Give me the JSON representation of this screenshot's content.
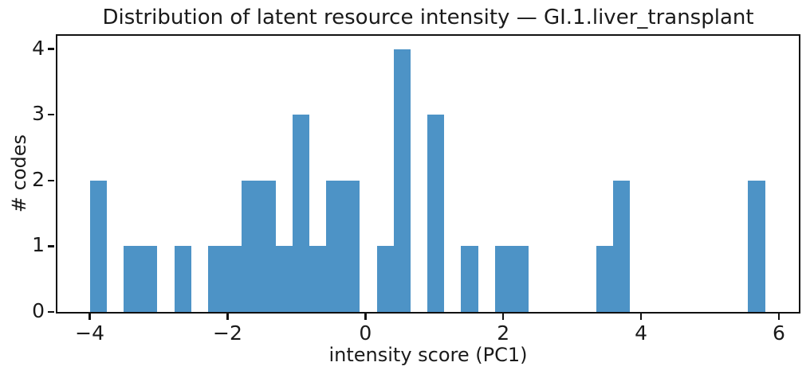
{
  "chart_data": {
    "type": "bar",
    "subtype": "histogram",
    "title": "Distribution of latent resource intensity — GI.1.liver_transplant",
    "xlabel": "intensity score (PC1)",
    "ylabel": "# codes",
    "bin_start": -4.0,
    "bin_width": 0.245,
    "counts": [
      2,
      0,
      1,
      1,
      0,
      1,
      0,
      1,
      1,
      2,
      2,
      1,
      3,
      1,
      2,
      2,
      0,
      1,
      4,
      0,
      3,
      0,
      1,
      0,
      1,
      1,
      0,
      0,
      0,
      0,
      1,
      2,
      0,
      0,
      0,
      0,
      0,
      0,
      0,
      2
    ],
    "xlim": [
      -4.47,
      6.29
    ],
    "ylim": [
      0,
      4.2
    ],
    "x_ticks": [
      {
        "value": -4,
        "label": "−4"
      },
      {
        "value": -2,
        "label": "−2"
      },
      {
        "value": 0,
        "label": "0"
      },
      {
        "value": 2,
        "label": "2"
      },
      {
        "value": 4,
        "label": "4"
      },
      {
        "value": 6,
        "label": "6"
      }
    ],
    "y_ticks": [
      {
        "value": 0,
        "label": "0"
      },
      {
        "value": 1,
        "label": "1"
      },
      {
        "value": 2,
        "label": "2"
      },
      {
        "value": 3,
        "label": "3"
      },
      {
        "value": 4,
        "label": "4"
      }
    ],
    "bar_color": "#4d93c6",
    "axis_color": "#111111",
    "text_color": "#1a1a1a",
    "grid": false,
    "legend_position": "none"
  }
}
